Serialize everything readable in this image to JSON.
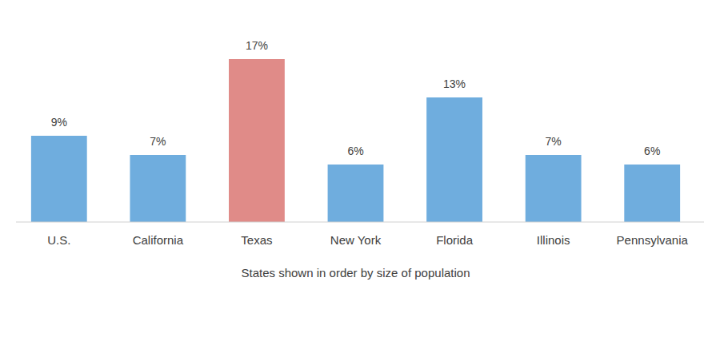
{
  "chart_data": {
    "type": "bar",
    "categories": [
      "U.S.",
      "California",
      "Texas",
      "New York",
      "Florida",
      "Illinois",
      "Pennsylvania"
    ],
    "values": [
      9,
      7,
      17,
      6,
      13,
      7,
      6
    ],
    "value_labels": [
      "9%",
      "7%",
      "17%",
      "6%",
      "13%",
      "7%",
      "6%"
    ],
    "colors": [
      "#6fadde",
      "#6fadde",
      "#e08b88",
      "#6fadde",
      "#6fadde",
      "#6fadde",
      "#6fadde"
    ],
    "ylim": [
      0,
      17
    ],
    "data_labels": true,
    "tick_labels": "x",
    "x_label": "States shown in order by size of population"
  }
}
